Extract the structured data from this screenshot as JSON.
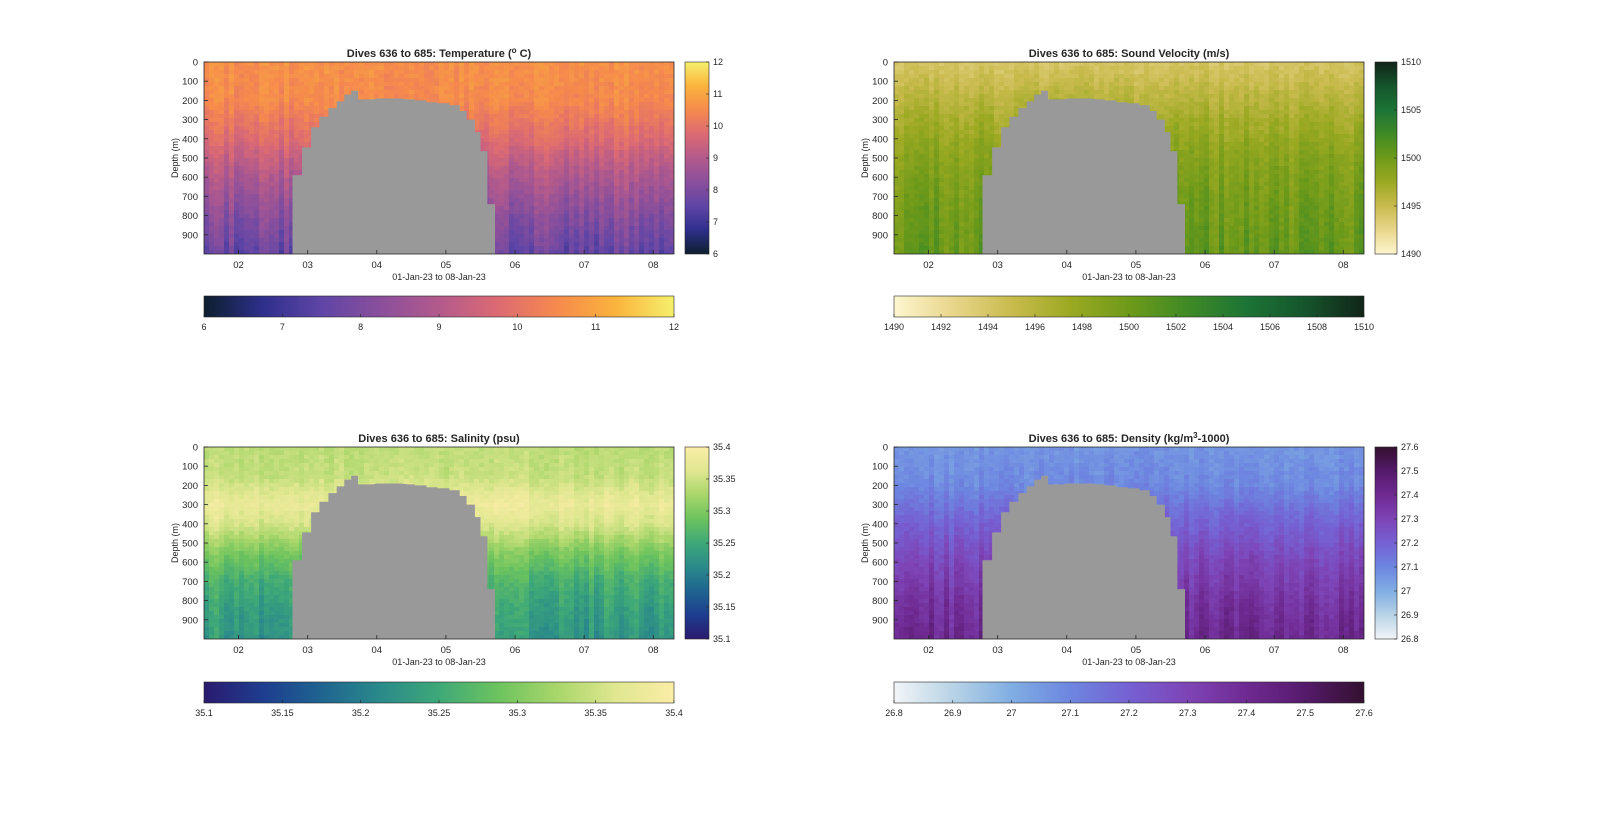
{
  "figure_background": "#ffffff",
  "chart_data": [
    {
      "type": "heatmap",
      "title": "Dives 636 to 685: Temperature (° C)",
      "title_parts": {
        "pre": "Dives 636 to 685: Temperature (",
        "sup": "o",
        "post": " C)"
      },
      "xlabel": "01-Jan-23 to 08-Jan-23",
      "ylabel": "Depth (m)",
      "x_ticks": [
        "02",
        "03",
        "04",
        "05",
        "06",
        "07",
        "08"
      ],
      "y_ticks": [
        "0",
        "100",
        "200",
        "300",
        "400",
        "500",
        "600",
        "700",
        "800",
        "900"
      ],
      "ylim": [
        1000,
        0
      ],
      "xlim": [
        1.5,
        8.3
      ],
      "clim": [
        6,
        12
      ],
      "side_colorbar_ticks": [
        "6",
        "7",
        "8",
        "9",
        "10",
        "11",
        "12"
      ],
      "bottom_colorbar_ticks": [
        "6",
        "7",
        "8",
        "9",
        "10",
        "11",
        "12"
      ],
      "colormap": [
        "#0d1f2d",
        "#2e2f8c",
        "#5f45a6",
        "#8a4f9c",
        "#b35a8c",
        "#dc6a73",
        "#f58a4d",
        "#fbb33c",
        "#f5f06c"
      ],
      "profile": {
        "depths": [
          0,
          200,
          400,
          600,
          800,
          1000
        ],
        "values": [
          10.6,
          10.5,
          9.8,
          8.9,
          8.2,
          7.6
        ]
      },
      "no_data_color": "#999999"
    },
    {
      "type": "heatmap",
      "title": "Dives 636 to 685: Sound Velocity (m/s)",
      "xlabel": "01-Jan-23 to 08-Jan-23",
      "ylabel": "Depth (m)",
      "x_ticks": [
        "02",
        "03",
        "04",
        "05",
        "06",
        "07",
        "08"
      ],
      "y_ticks": [
        "0",
        "100",
        "200",
        "300",
        "400",
        "500",
        "600",
        "700",
        "800",
        "900"
      ],
      "ylim": [
        1000,
        0
      ],
      "xlim": [
        1.5,
        8.3
      ],
      "clim": [
        1490,
        1510
      ],
      "side_colorbar_ticks": [
        "1490",
        "1495",
        "1500",
        "1505",
        "1510"
      ],
      "bottom_colorbar_ticks": [
        "1490",
        "1492",
        "1494",
        "1496",
        "1498",
        "1500",
        "1502",
        "1504",
        "1506",
        "1508",
        "1510"
      ],
      "colormap": [
        "#fdf6cf",
        "#e8d68b",
        "#c9bb4e",
        "#9ba922",
        "#6e9a19",
        "#3f8a25",
        "#1c7436",
        "#15552c",
        "#112519"
      ],
      "profile": {
        "depths": [
          0,
          100,
          300,
          500,
          700,
          1000
        ],
        "values": [
          1494.0,
          1495.0,
          1497.0,
          1498.6,
          1499.6,
          1500.6
        ]
      },
      "no_data_color": "#999999"
    },
    {
      "type": "heatmap",
      "title": "Dives 636 to 685: Salinity (psu)",
      "xlabel": "01-Jan-23 to 08-Jan-23",
      "ylabel": "Depth (m)",
      "x_ticks": [
        "02",
        "03",
        "04",
        "05",
        "06",
        "07",
        "08"
      ],
      "y_ticks": [
        "0",
        "100",
        "200",
        "300",
        "400",
        "500",
        "600",
        "700",
        "800",
        "900"
      ],
      "ylim": [
        1000,
        0
      ],
      "xlim": [
        1.5,
        8.3
      ],
      "clim": [
        35.1,
        35.4
      ],
      "side_colorbar_ticks": [
        "35.1",
        "35.15",
        "35.2",
        "35.25",
        "35.3",
        "35.35",
        "35.4"
      ],
      "bottom_colorbar_ticks": [
        "35.1",
        "35.15",
        "35.2",
        "35.25",
        "35.3",
        "35.35",
        "35.4"
      ],
      "colormap": [
        "#2a1a6e",
        "#1e3d8f",
        "#1f6491",
        "#2a8a8a",
        "#3ea878",
        "#6cc35e",
        "#a8d66a",
        "#dfe78f",
        "#fbeda6"
      ],
      "profile": {
        "depths": [
          0,
          150,
          300,
          400,
          550,
          700,
          850,
          1000
        ],
        "values": [
          35.34,
          35.345,
          35.38,
          35.36,
          35.3,
          35.26,
          35.24,
          35.23
        ]
      },
      "no_data_color": "#999999"
    },
    {
      "type": "heatmap",
      "title": "Dives 636 to 685: Density (kg/m³-1000)",
      "title_parts": {
        "pre": "Dives 636 to 685: Density (kg/m",
        "sup": "3",
        "post": "-1000)"
      },
      "xlabel": "01-Jan-23 to 08-Jan-23",
      "ylabel": "Depth (m)",
      "x_ticks": [
        "02",
        "03",
        "04",
        "05",
        "06",
        "07",
        "08"
      ],
      "y_ticks": [
        "0",
        "100",
        "200",
        "300",
        "400",
        "500",
        "600",
        "700",
        "800",
        "900"
      ],
      "ylim": [
        1000,
        0
      ],
      "xlim": [
        1.5,
        8.3
      ],
      "clim": [
        26.8,
        27.6
      ],
      "side_colorbar_ticks": [
        "26.8",
        "26.9",
        "27",
        "27.1",
        "27.2",
        "27.3",
        "27.4",
        "27.5",
        "27.6"
      ],
      "bottom_colorbar_ticks": [
        "26.8",
        "26.9",
        "27",
        "27.1",
        "27.2",
        "27.3",
        "27.4",
        "27.5",
        "27.6"
      ],
      "colormap": [
        "#f2f5f7",
        "#b8d3e6",
        "#80aee3",
        "#6d86e0",
        "#7561d3",
        "#7e44b6",
        "#6f2a92",
        "#551a6b",
        "#33102f"
      ],
      "profile": {
        "depths": [
          0,
          200,
          400,
          600,
          800,
          1000
        ],
        "values": [
          27.06,
          27.09,
          27.2,
          27.29,
          27.36,
          27.41
        ]
      },
      "no_data_color": "#999999"
    }
  ]
}
